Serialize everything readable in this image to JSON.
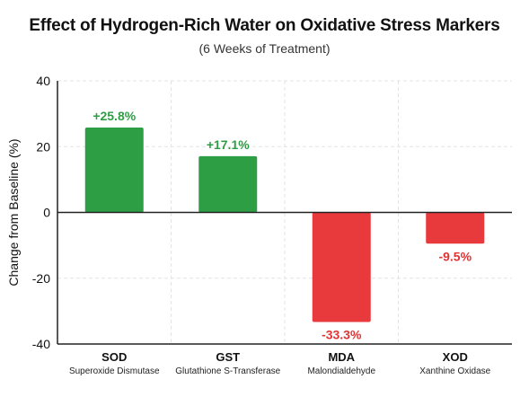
{
  "chart_data": {
    "type": "bar",
    "title": "Effect of Hydrogen-Rich Water on Oxidative Stress Markers",
    "subtitle": "(6 Weeks of Treatment)",
    "xlabel": "",
    "ylabel": "Change from Baseline (%)",
    "ylim": [
      -40,
      40
    ],
    "yticks": [
      -40,
      -20,
      0,
      20,
      40
    ],
    "ytick_labels": [
      "-40",
      "-20",
      "0",
      "20",
      "40"
    ],
    "grid": true,
    "categories": [
      {
        "code": "SOD",
        "name": "Superoxide Dismutase"
      },
      {
        "code": "GST",
        "name": "Glutathione S-Transferase"
      },
      {
        "code": "MDA",
        "name": "Malondialdehyde"
      },
      {
        "code": "XOD",
        "name": "Xanthine Oxidase"
      }
    ],
    "values": [
      25.8,
      17.1,
      -33.3,
      -9.5
    ],
    "value_labels": [
      "+25.8%",
      "+17.1%",
      "-33.3%",
      "-9.5%"
    ],
    "colors": {
      "positive": "#2e9e44",
      "negative": "#e8393c",
      "positive_label": "#2e9e44",
      "negative_label": "#e03434",
      "grid": "#e3e3e3",
      "axis": "#222222"
    }
  }
}
